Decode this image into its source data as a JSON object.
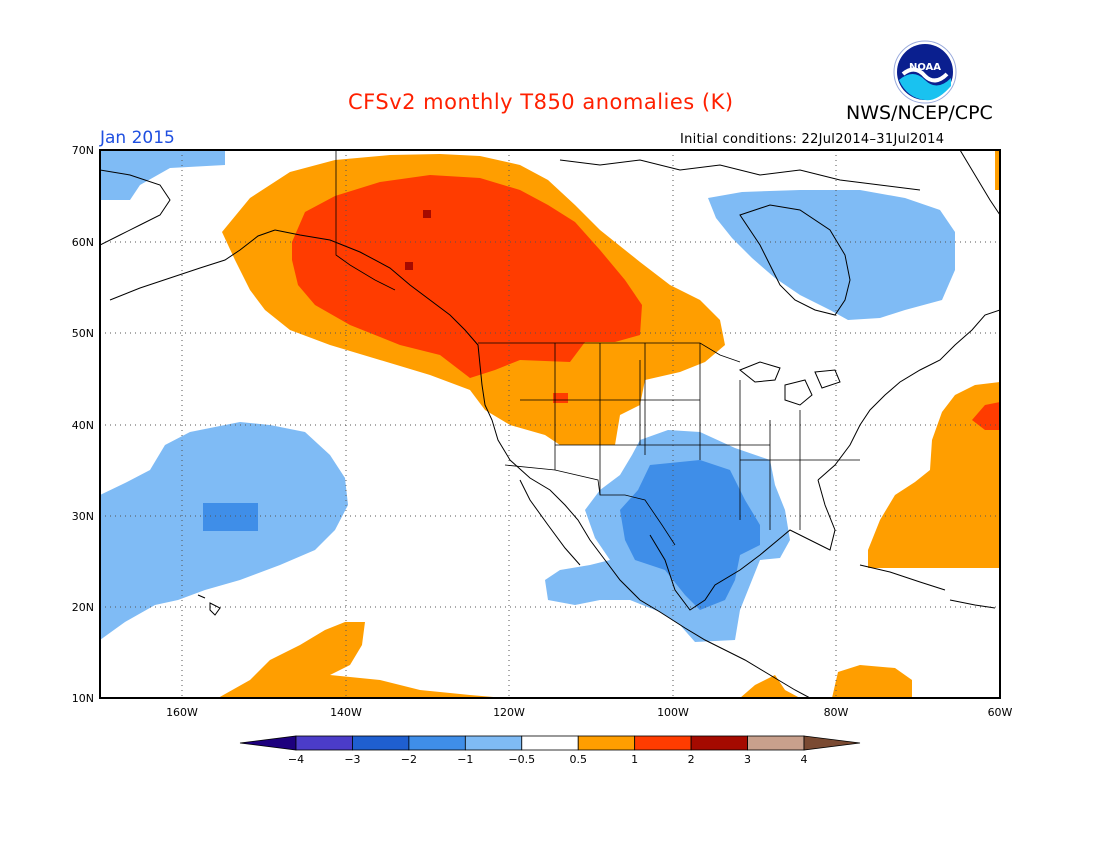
{
  "title": "CFSv2 monthly T850 anomalies (K)",
  "agency": "NWS/NCEP/CPC",
  "logo_text": "NOAA",
  "forecast_month": "Jan 2015",
  "initial_conditions": "Initial conditions: 22Jul2014–31Jul2014",
  "map": {
    "lon_range": [
      -172,
      -60
    ],
    "lat_range": [
      10,
      70
    ],
    "lat_labels": [
      "70N",
      "60N",
      "50N",
      "40N",
      "30N",
      "20N",
      "10N"
    ],
    "lon_labels": [
      "160W",
      "140W",
      "120W",
      "100W",
      "80W",
      "60W"
    ],
    "lat_values": [
      70,
      60,
      50,
      40,
      30,
      20,
      10
    ],
    "lon_values": [
      -160,
      -140,
      -120,
      -100,
      -80,
      -60
    ]
  },
  "colorbar": {
    "labels": [
      "−4",
      "−3",
      "−2",
      "−1",
      "−0.5",
      "0.5",
      "1",
      "2",
      "3",
      "4"
    ],
    "colors": [
      "#1d007e",
      "#4b3cc8",
      "#1f5fd0",
      "#3f8ee8",
      "#7fbbf5",
      "#ffffff",
      "#ff9e00",
      "#ff3c00",
      "#a50a00",
      "#c8a08c",
      "#7a4a32"
    ]
  },
  "colors": {
    "plus_half": "#ff9e00",
    "plus_one": "#ff3c00",
    "plus_two": "#a50a00",
    "minus_half": "#7fbbf5",
    "minus_one": "#3f8ee8"
  }
}
